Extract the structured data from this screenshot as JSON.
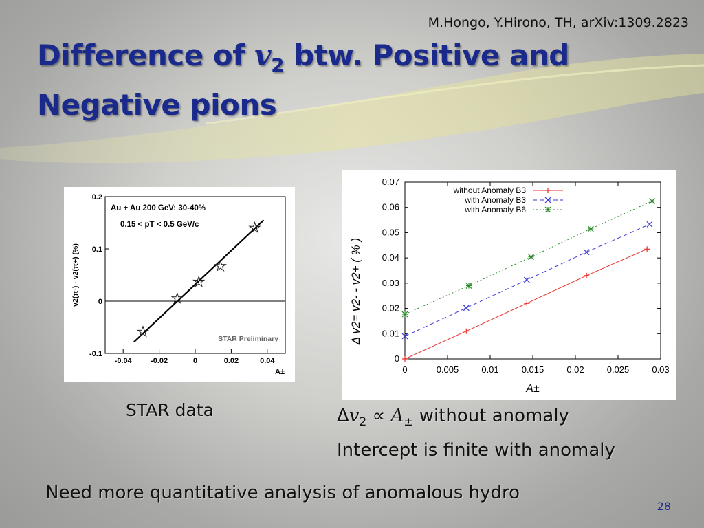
{
  "header": {
    "credit": "M.Hongo, Y.Hirono, TH, arXiv:1309.2823",
    "title_part1": "Difference of ",
    "title_var": "v",
    "title_sub": "2",
    "title_part2": " btw. Positive and",
    "title_line2": "Negative pions"
  },
  "captions": {
    "star_data": "STAR data",
    "prop_delta": "Δ",
    "prop_v": "v",
    "prop_sub": "2",
    "prop_symbol": " ∝ ",
    "prop_a": "A",
    "prop_pm": "±",
    "prop_text": " without anomaly",
    "intercept": "Intercept is finite with anomaly",
    "bottom": "Need more quantitative analysis of anomalous hydro",
    "page_number": "28"
  },
  "chart_data": [
    {
      "type": "scatter",
      "ylabel": "v2(π-) - v2(π+) (%)",
      "xlabel": "A±",
      "annotation_lines": [
        "Au + Au 200 GeV: 30-40%",
        "0.15 < pT < 0.5 GeV/c"
      ],
      "watermark": "STAR Preliminary",
      "xlim": [
        -0.05,
        0.05
      ],
      "ylim": [
        -0.1,
        0.2
      ],
      "xticks": [
        -0.04,
        -0.02,
        0,
        0.02,
        0.04
      ],
      "xtick_labels": [
        "-0.04",
        "-0.02",
        "0",
        "0.02",
        "0.04"
      ],
      "yticks": [
        -0.1,
        0,
        0.1,
        0.2
      ],
      "ytick_labels": [
        "-0.1",
        "0",
        "0.1",
        "0.2"
      ],
      "series": [
        {
          "name": "STAR",
          "marker": "star",
          "x": [
            -0.029,
            -0.01,
            0.002,
            0.014,
            0.033
          ],
          "y": [
            -0.059,
            0.005,
            0.037,
            0.067,
            0.14
          ]
        }
      ],
      "fit_line": {
        "x": [
          -0.034,
          0.038
        ],
        "y": [
          -0.078,
          0.155
        ]
      }
    },
    {
      "type": "line",
      "ylabel": "Δ v2= v2- - v2+ ( % )",
      "xlabel": "A±",
      "xlim": [
        0,
        0.03
      ],
      "ylim": [
        0,
        0.07
      ],
      "xticks": [
        0,
        0.005,
        0.01,
        0.015,
        0.02,
        0.025,
        0.03
      ],
      "xtick_labels": [
        "0",
        "0.005",
        "0.01",
        "0.015",
        "0.02",
        "0.025",
        "0.03"
      ],
      "yticks": [
        0,
        0.01,
        0.02,
        0.03,
        0.04,
        0.05,
        0.06,
        0.07
      ],
      "ytick_labels": [
        "0",
        "0.01",
        "0.02",
        "0.03",
        "0.04",
        "0.05",
        "0.06",
        "0.07"
      ],
      "legend_position": "top",
      "series": [
        {
          "name": "without Anomaly B3",
          "color": "#e8302a",
          "dash": "",
          "marker": "plus",
          "x": [
            0,
            0.0072,
            0.0143,
            0.0213,
            0.0284
          ],
          "y": [
            0,
            0.011,
            0.022,
            0.033,
            0.0435
          ]
        },
        {
          "name": "with Anomaly  B3",
          "color": "#3a3ad8",
          "dash": "6,4",
          "marker": "cross",
          "x": [
            0,
            0.0072,
            0.0143,
            0.0213,
            0.0287
          ],
          "y": [
            0.009,
            0.0202,
            0.0313,
            0.0423,
            0.0533
          ]
        },
        {
          "name": "with Anomaly B6",
          "color": "#2a8a2a",
          "dash": "2,3",
          "marker": "asterisk",
          "x": [
            0,
            0.0075,
            0.0148,
            0.0218,
            0.029
          ],
          "y": [
            0.0177,
            0.029,
            0.0404,
            0.0515,
            0.0625
          ]
        }
      ]
    }
  ]
}
